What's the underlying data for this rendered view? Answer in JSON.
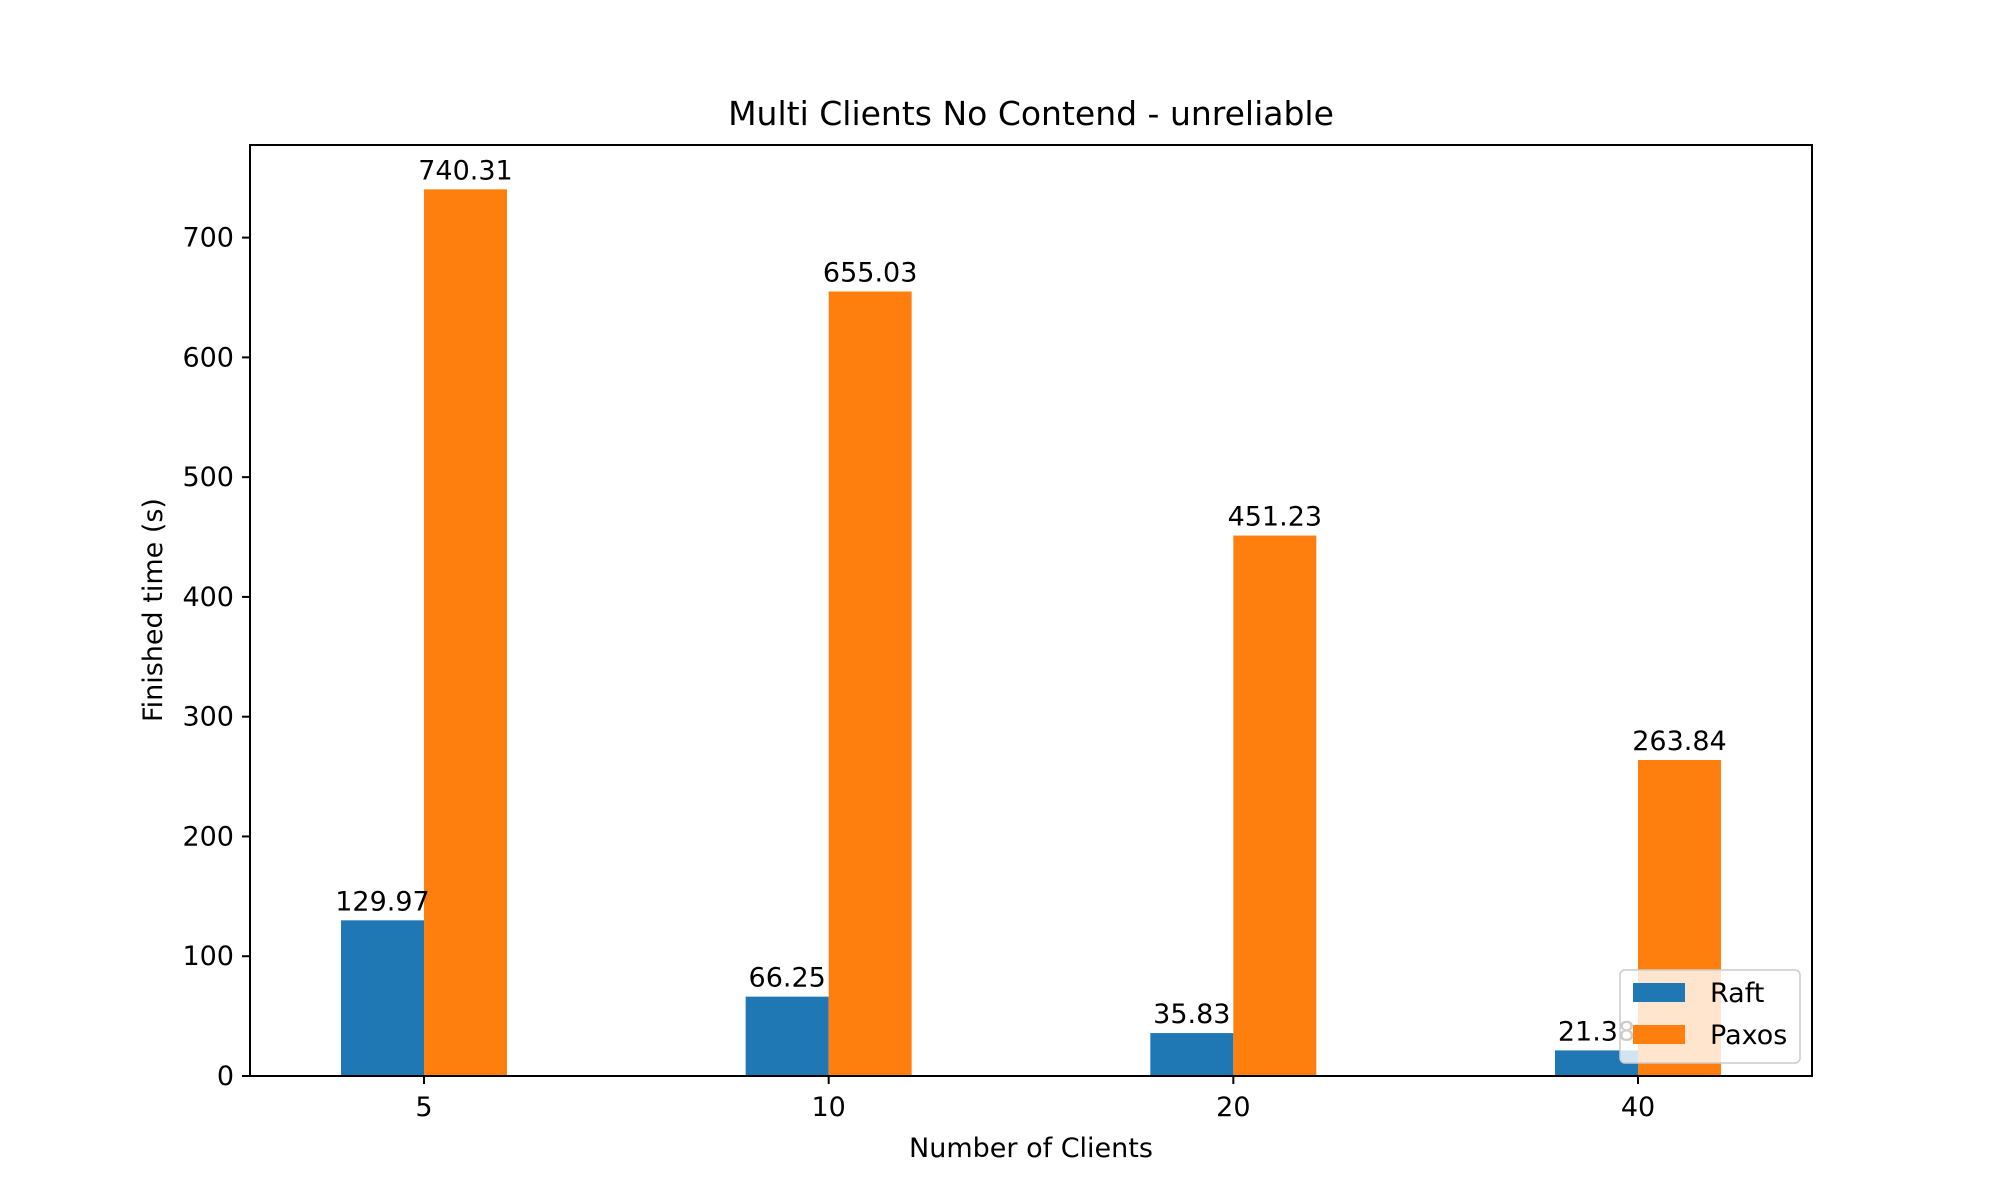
{
  "chart_data": {
    "type": "bar",
    "title": "Multi Clients No Contend - unreliable",
    "xlabel": "Number of Clients",
    "ylabel": "Finished time (s)",
    "categories": [
      "5",
      "10",
      "20",
      "40"
    ],
    "series": [
      {
        "name": "Raft",
        "values": [
          129.97,
          66.25,
          35.83,
          21.38
        ],
        "labels": [
          "129.97",
          "66.25",
          "35.83",
          "21.38"
        ],
        "color": "#1f77b4"
      },
      {
        "name": "Paxos",
        "values": [
          740.31,
          655.03,
          451.23,
          263.84
        ],
        "labels": [
          "740.31",
          "655.03",
          "451.23",
          "263.84"
        ],
        "color": "#ff7f0e"
      }
    ],
    "ylim": [
      0,
      777.33
    ],
    "yticks": [
      0,
      100,
      200,
      300,
      400,
      500,
      600,
      700
    ],
    "legend": "lower-right",
    "grid": false
  }
}
